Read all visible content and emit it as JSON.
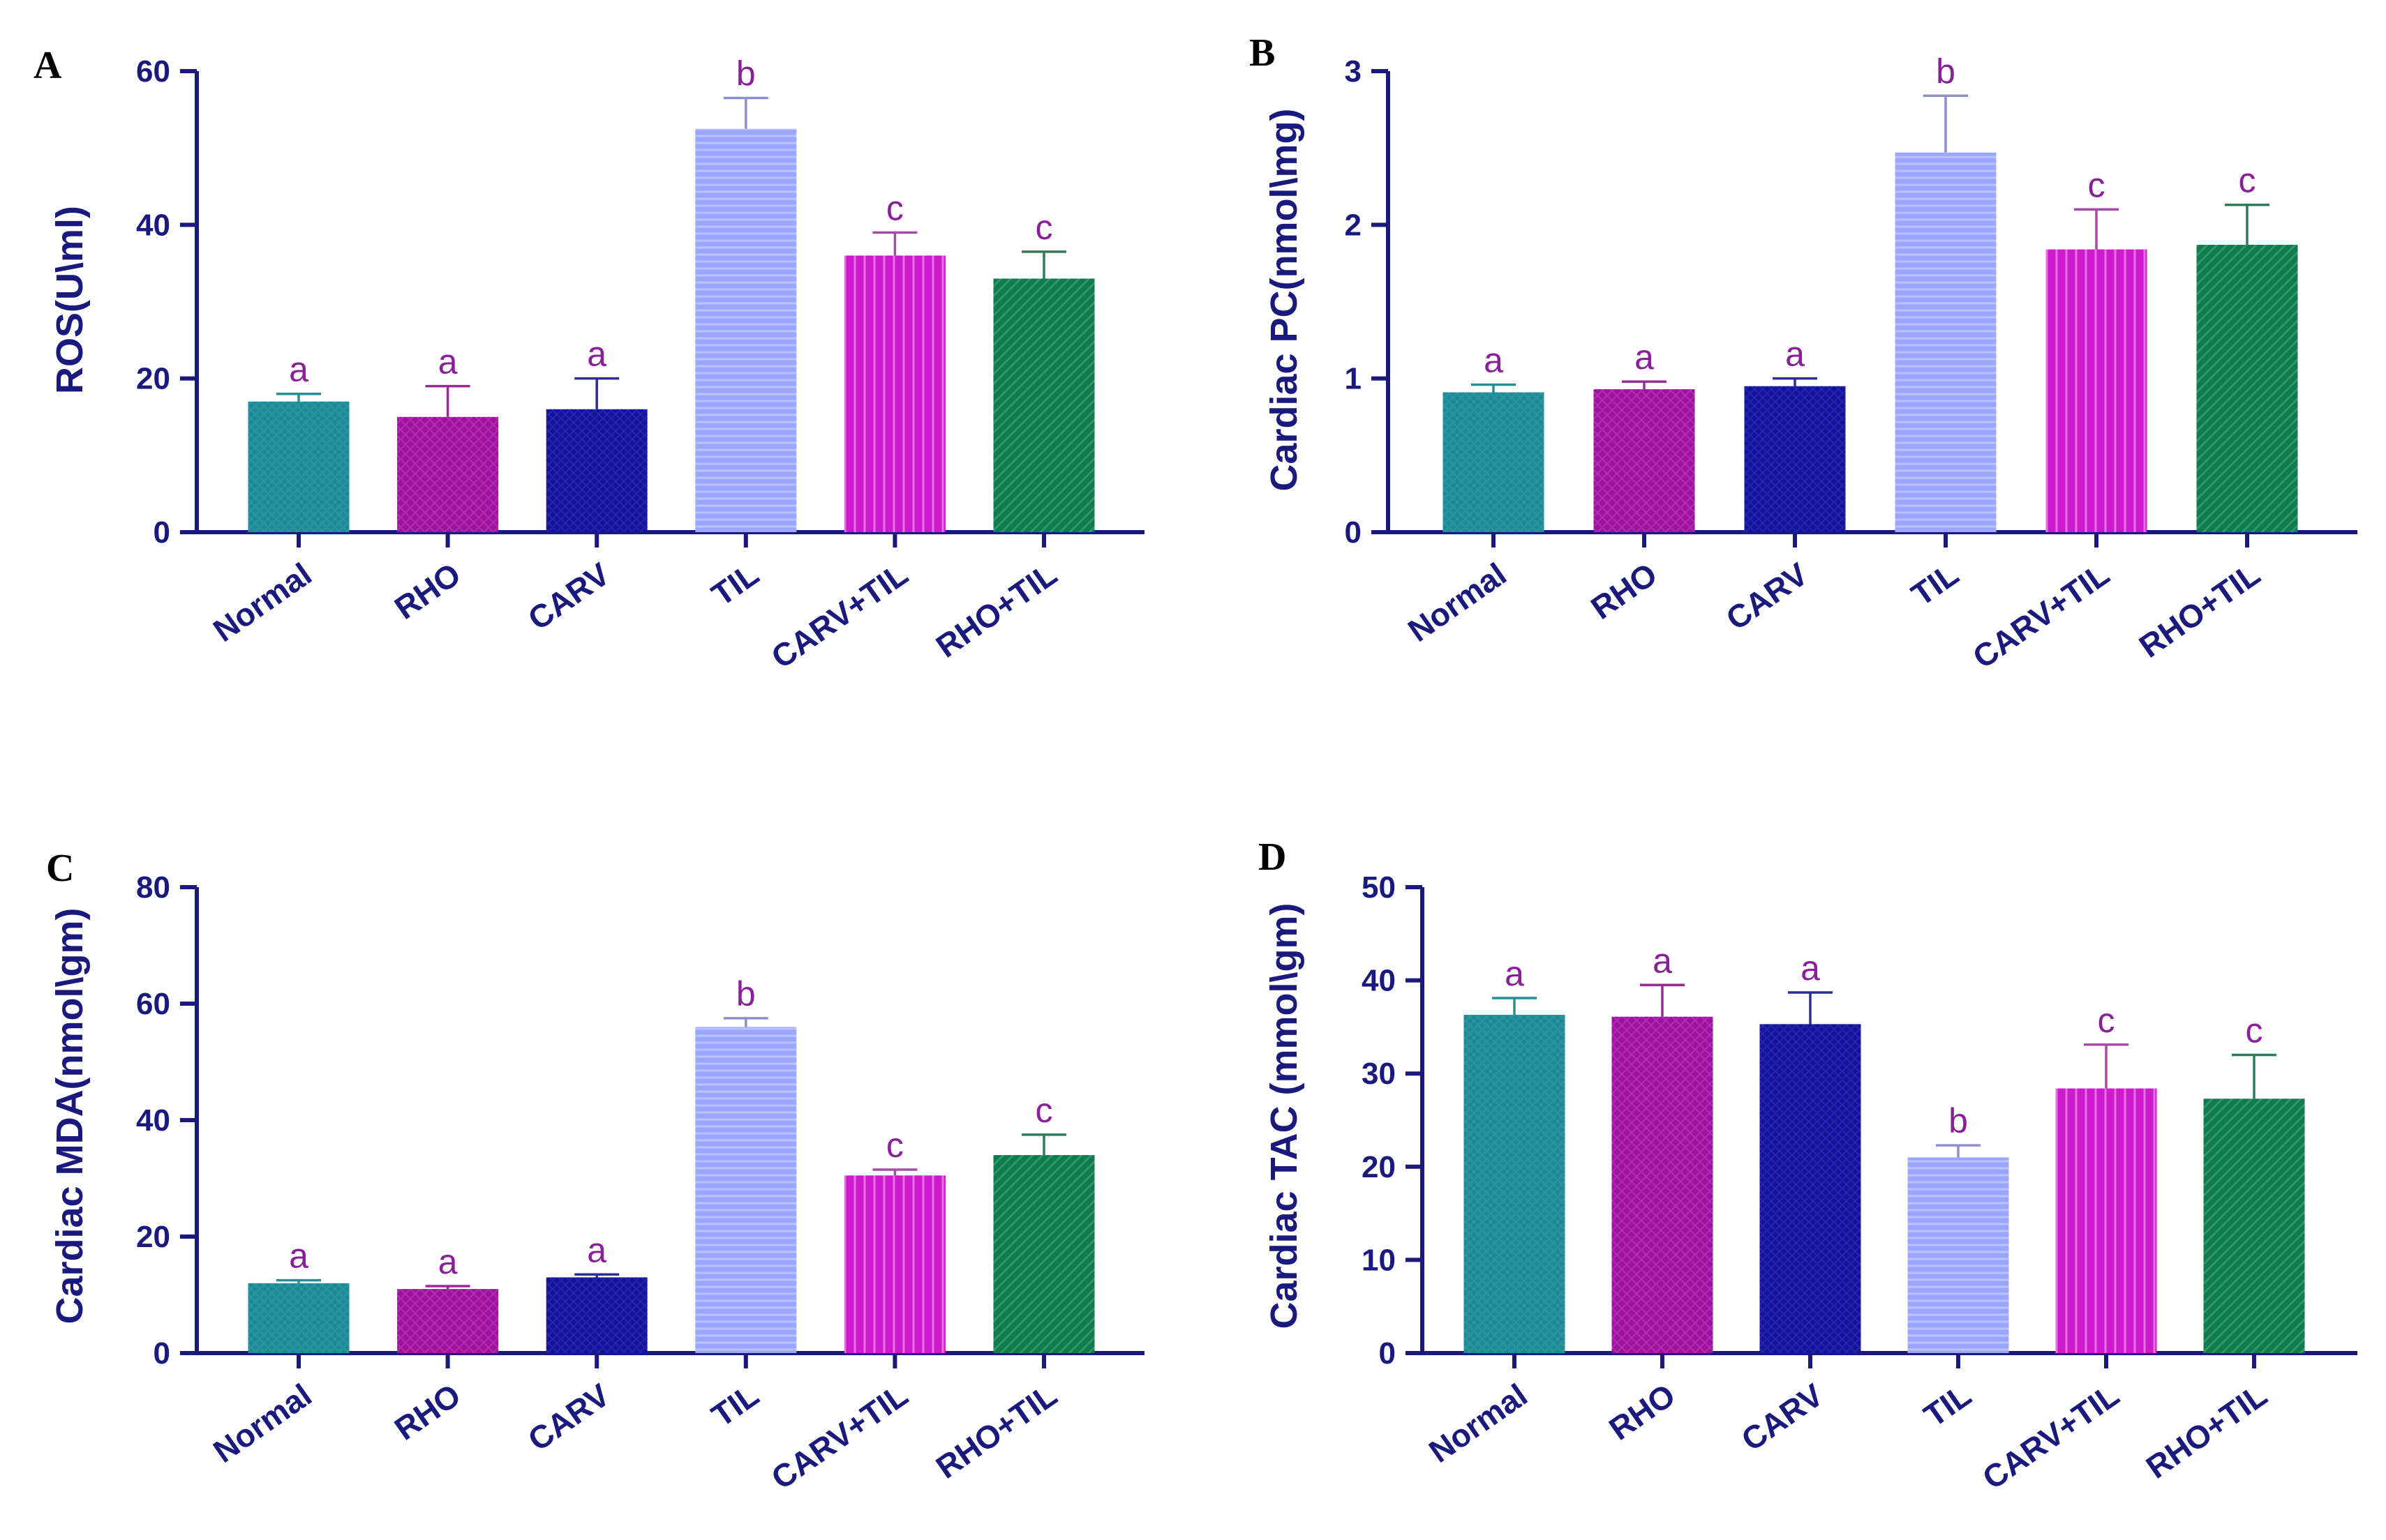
{
  "colors": {
    "axis": "#1a1a7e",
    "sig_label": "#8a1f9a",
    "bars": [
      "#1f8a96",
      "#9e139e",
      "#131599",
      "#99a6ff",
      "#cc1acc",
      "#137a4f"
    ],
    "err": [
      "#2a8f94",
      "#9a2a9a",
      "#2b2f8f",
      "#8f8fcf",
      "#a84aa8",
      "#2f7a5a"
    ]
  },
  "chart_data": [
    {
      "panel": "A",
      "type": "bar",
      "ylabel": "ROS(U\\ml)",
      "xlabel": "",
      "ylim": [
        0,
        60
      ],
      "yticks": [
        "0",
        "20",
        "40",
        "60"
      ],
      "categories": [
        "Normal",
        "RHO",
        "CARV",
        "TIL",
        "CARV+TIL",
        "RHO+TIL"
      ],
      "values": [
        17,
        15,
        16,
        52.5,
        36,
        33
      ],
      "errors": [
        1,
        4,
        4,
        4,
        3,
        3.5
      ],
      "labels": [
        "a",
        "a",
        "a",
        "b",
        "c",
        "c"
      ]
    },
    {
      "panel": "B",
      "type": "bar",
      "ylabel": "Cardiac PC(nmol\\mg)",
      "xlabel": "",
      "ylim": [
        0,
        3
      ],
      "yticks": [
        "0",
        "1",
        "2",
        "3"
      ],
      "categories": [
        "Normal",
        "RHO",
        "CARV",
        "TIL",
        "CARV+TIL",
        "RHO+TIL"
      ],
      "values": [
        0.91,
        0.93,
        0.95,
        2.47,
        1.84,
        1.87
      ],
      "errors": [
        0.05,
        0.05,
        0.05,
        0.37,
        0.26,
        0.26
      ],
      "labels": [
        "a",
        "a",
        "a",
        "b",
        "c",
        "c"
      ]
    },
    {
      "panel": "C",
      "type": "bar",
      "ylabel": "Cardiac MDA(nmol\\gm)",
      "xlabel": "",
      "ylim": [
        0,
        80
      ],
      "yticks": [
        "0",
        "20",
        "40",
        "60",
        "80"
      ],
      "categories": [
        "Normal",
        "RHO",
        "CARV",
        "TIL",
        "CARV+TIL",
        "RHO+TIL"
      ],
      "values": [
        12,
        11,
        13,
        56,
        30.5,
        34
      ],
      "errors": [
        0.5,
        0.5,
        0.5,
        1.5,
        1,
        3.5
      ],
      "labels": [
        "a",
        "a",
        "a",
        "b",
        "c",
        "c"
      ]
    },
    {
      "panel": "D",
      "type": "bar",
      "ylabel": "Cardiac TAC (mmol\\gm)",
      "xlabel": "",
      "ylim": [
        0,
        50
      ],
      "yticks": [
        "0",
        "10",
        "20",
        "30",
        "40",
        "50"
      ],
      "categories": [
        "Normal",
        "RHO",
        "CARV",
        "TIL",
        "CARV+TIL",
        "RHO+TIL"
      ],
      "values": [
        36.3,
        36.1,
        35.3,
        21,
        28.4,
        27.3
      ],
      "errors": [
        1.8,
        3.4,
        3.4,
        1.3,
        4.7,
        4.7
      ],
      "labels": [
        "a",
        "a",
        "a",
        "b",
        "c",
        "c"
      ]
    }
  ]
}
